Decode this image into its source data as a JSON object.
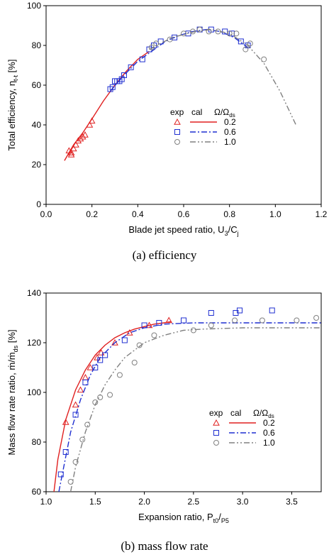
{
  "chart_data": [
    {
      "type": "line",
      "caption": "(a)  efficiency",
      "xlabel": "Blade jet speed ratio, U",
      "xlabel_sub": "3",
      "xlabel_tail": "/C",
      "xlabel_sub2": "j",
      "ylabel": "Total efficiency, η",
      "ylabel_sub": "t-t",
      "ylabel_tail": " [%]",
      "xlim": [
        0.0,
        1.2
      ],
      "ylim": [
        0,
        100
      ],
      "xticks": [
        "0.0",
        "0.2",
        "0.4",
        "0.6",
        "0.8",
        "1.0",
        "1.2"
      ],
      "yticks": [
        "0",
        "20",
        "40",
        "60",
        "80",
        "100"
      ],
      "legend": {
        "header_exp": "exp",
        "header_cal": "cal",
        "header_ratio": "Ω/Ω",
        "header_ratio_sub": "ds",
        "position": "center-right",
        "entries": [
          {
            "label": "0.2",
            "color": "#e02020",
            "marker": "triangle",
            "dash": "solid"
          },
          {
            "label": "0.6",
            "color": "#1f2fd0",
            "marker": "square",
            "dash": "dashdot"
          },
          {
            "label": "1.0",
            "color": "#808080",
            "marker": "circle",
            "dash": "dashdotdot"
          }
        ]
      },
      "series": [
        {
          "label": "0.2",
          "color": "#e02020",
          "marker": "triangle",
          "dash": "solid",
          "x": [
            0.08,
            0.12,
            0.16,
            0.2,
            0.25,
            0.3,
            0.35,
            0.4,
            0.45
          ],
          "y": [
            22,
            30,
            36,
            43,
            52,
            60,
            67,
            73,
            77
          ],
          "points_x": [
            0.1,
            0.11,
            0.11,
            0.12,
            0.13,
            0.14,
            0.15,
            0.16,
            0.17,
            0.19,
            0.2
          ],
          "points_y": [
            27,
            25,
            26,
            28,
            30,
            32,
            33,
            34,
            35,
            40,
            42
          ]
        },
        {
          "label": "0.6",
          "color": "#1f2fd0",
          "marker": "square",
          "dash": "dashdot",
          "x": [
            0.28,
            0.34,
            0.4,
            0.46,
            0.52,
            0.58,
            0.64,
            0.7,
            0.76,
            0.82,
            0.88
          ],
          "y": [
            57,
            65,
            72,
            77,
            82,
            85,
            87,
            88,
            87,
            84,
            79
          ],
          "points_x": [
            0.28,
            0.29,
            0.3,
            0.31,
            0.32,
            0.33,
            0.34,
            0.37,
            0.42,
            0.45,
            0.47,
            0.5,
            0.56,
            0.62,
            0.67,
            0.72,
            0.78,
            0.81,
            0.85,
            0.88
          ],
          "points_y": [
            58,
            59,
            62,
            62,
            62,
            63,
            65,
            69,
            73,
            78,
            80,
            82,
            84,
            86,
            88,
            88,
            87,
            86,
            82,
            80
          ]
        },
        {
          "label": "1.0",
          "color": "#808080",
          "marker": "circle",
          "dash": "dashdotdot",
          "x": [
            0.45,
            0.55,
            0.65,
            0.72,
            0.8,
            0.88,
            0.95,
            1.02,
            1.09
          ],
          "y": [
            78,
            84,
            87,
            88,
            86,
            80,
            71,
            57,
            40
          ],
          "points_x": [
            0.46,
            0.48,
            0.54,
            0.6,
            0.64,
            0.67,
            0.71,
            0.75,
            0.8,
            0.83,
            0.87,
            0.89,
            0.95
          ],
          "points_y": [
            79,
            81,
            83,
            86,
            87,
            88,
            87,
            87,
            86,
            86,
            78,
            81,
            73
          ]
        }
      ]
    },
    {
      "type": "line",
      "caption": "(b)  mass  flow  rate",
      "xlabel": "Expansion ratio, P",
      "xlabel_sub": "t0",
      "xlabel_tail": "/",
      "xlabel_sub2": "P5",
      "ylabel": "Mass flow rate ratio, ṁ/ṁ",
      "ylabel_sub": "ds",
      "ylabel_tail": " [%]",
      "xlim": [
        1.0,
        3.8
      ],
      "ylim": [
        60,
        140
      ],
      "xticks": [
        "1.0",
        "1.5",
        "2.0",
        "2.5",
        "3.0",
        "3.5"
      ],
      "yticks": [
        "60",
        "80",
        "100",
        "120",
        "140"
      ],
      "legend": {
        "header_exp": "exp",
        "header_cal": "cal",
        "header_ratio": "Ω/Ω",
        "header_ratio_sub": "ds",
        "position": "center-right",
        "entries": [
          {
            "label": "0.2",
            "color": "#e02020",
            "marker": "triangle",
            "dash": "solid"
          },
          {
            "label": "0.6",
            "color": "#1f2fd0",
            "marker": "square",
            "dash": "dashdot"
          },
          {
            "label": "1.0",
            "color": "#808080",
            "marker": "circle",
            "dash": "dashdotdot"
          }
        ]
      },
      "series": [
        {
          "label": "0.2",
          "color": "#e02020",
          "marker": "triangle",
          "dash": "solid",
          "x": [
            1.08,
            1.12,
            1.2,
            1.3,
            1.4,
            1.5,
            1.6,
            1.7,
            1.8,
            1.9,
            2.0,
            2.1,
            2.2,
            2.27
          ],
          "y": [
            60,
            73,
            89,
            101,
            109,
            115,
            119,
            122,
            124,
            125.5,
            126.5,
            127.5,
            128,
            128.5
          ],
          "points_x": [
            1.2,
            1.3,
            1.35,
            1.4,
            1.45,
            1.52,
            1.56,
            1.7,
            1.85,
            2.05,
            2.25
          ],
          "points_y": [
            88,
            95,
            101,
            106,
            110,
            114,
            116,
            120,
            124,
            127,
            129
          ]
        },
        {
          "label": "0.6",
          "color": "#1f2fd0",
          "marker": "square",
          "dash": "dashdot",
          "x": [
            1.13,
            1.18,
            1.25,
            1.35,
            1.45,
            1.55,
            1.7,
            1.85,
            2.0,
            2.2,
            2.5,
            3.0,
            3.5,
            3.8
          ],
          "y": [
            60,
            70,
            84,
            97,
            107,
            114,
            120,
            124,
            126,
            127.5,
            128,
            128,
            128,
            128
          ],
          "points_x": [
            1.15,
            1.2,
            1.3,
            1.4,
            1.5,
            1.55,
            1.6,
            1.8,
            2.0,
            2.15,
            2.4,
            2.68,
            2.93,
            2.97,
            3.3
          ],
          "points_y": [
            67,
            76,
            91,
            104,
            110,
            113,
            115,
            121,
            127,
            128,
            129,
            132,
            132,
            133,
            133
          ]
        },
        {
          "label": "1.0",
          "color": "#808080",
          "marker": "circle",
          "dash": "dashdotdot",
          "x": [
            1.25,
            1.3,
            1.4,
            1.5,
            1.6,
            1.7,
            1.8,
            2.0,
            2.2,
            2.4,
            2.6,
            3.0,
            3.5,
            3.8
          ],
          "y": [
            60,
            70,
            84,
            95,
            103,
            109,
            114,
            120,
            123,
            125,
            125.5,
            126,
            126,
            126
          ],
          "points_x": [
            1.25,
            1.3,
            1.37,
            1.42,
            1.5,
            1.55,
            1.65,
            1.75,
            1.9,
            1.95,
            2.1,
            2.5,
            2.68,
            2.92,
            3.2,
            3.55,
            3.75
          ],
          "points_y": [
            64,
            72,
            81,
            87,
            96,
            98,
            99,
            107,
            112,
            119,
            123,
            125,
            127,
            129,
            129,
            129,
            130
          ]
        }
      ]
    }
  ]
}
